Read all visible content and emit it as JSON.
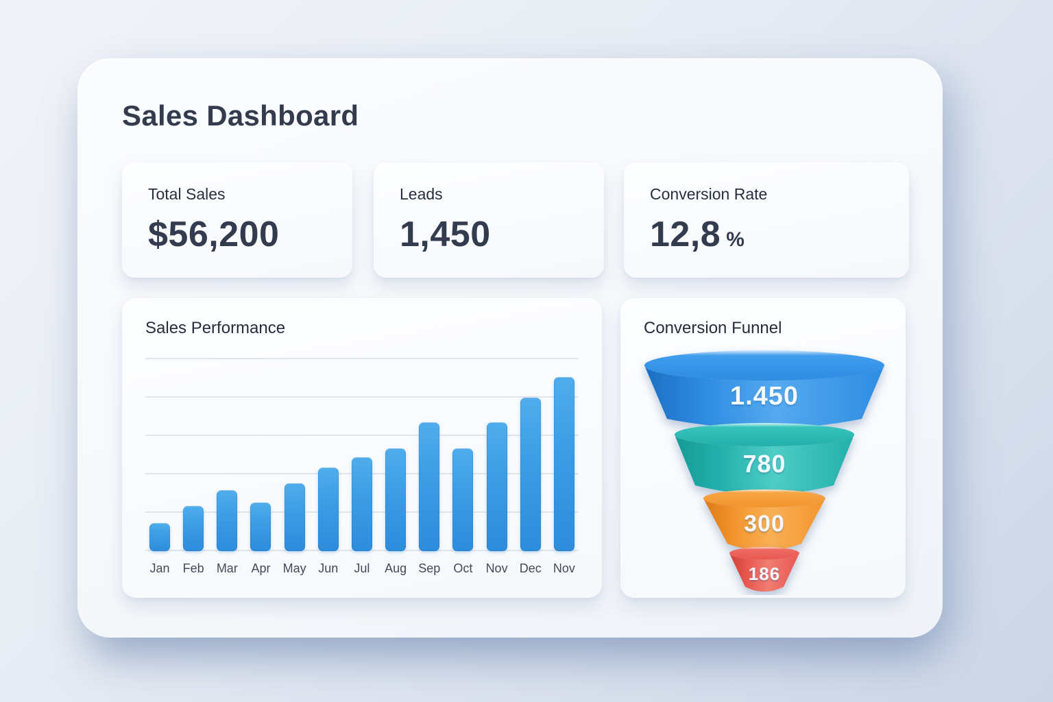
{
  "page": {
    "title": "Sales Dashboard"
  },
  "stats": [
    {
      "label": "Total Sales",
      "value": "$56,200",
      "unit": ""
    },
    {
      "label": "Leads",
      "value": "1,450",
      "unit": ""
    },
    {
      "label": "Conversion Rate",
      "value": "12,8",
      "unit": "%"
    }
  ],
  "chart_data": [
    {
      "type": "bar",
      "title": "Sales Performance",
      "categories": [
        "Jan",
        "Feb",
        "Mar",
        "Apr",
        "May",
        "Jun",
        "Jul",
        "Aug",
        "Sep",
        "Oct",
        "Nov",
        "Dec",
        "Nov"
      ],
      "values": [
        16,
        26,
        35,
        28,
        39,
        48,
        54,
        59,
        74,
        59,
        74,
        88,
        100
      ],
      "value_note": "relative bar heights in % of tallest bar; y-axis has no tick labels",
      "xlabel": "",
      "ylabel": "",
      "ylim": [
        0,
        100
      ],
      "grid": true,
      "gridline_count": 6,
      "legend": "none",
      "bar_gradient": [
        "#4FADEC",
        "#2E8CDC"
      ]
    },
    {
      "type": "funnel",
      "title": "Conversion Funnel",
      "stages": [
        {
          "label": "1.450",
          "value": 1450,
          "color": "#2E8CE2",
          "color_dark": "#1C6FC2",
          "color_light": "#55AAF0",
          "lid_rim": "#CFE8FC",
          "lid_main": "#3F9BEC"
        },
        {
          "label": "780",
          "value": 780,
          "color": "#23B0AB",
          "color_dark": "#169A95",
          "color_light": "#4ECDC6",
          "lid_rim": "#D6F6F4",
          "lid_main": "#35C2BB"
        },
        {
          "label": "300",
          "value": 300,
          "color": "#F3942D",
          "color_dark": "#DB7A16",
          "color_light": "#F9B055",
          "lid_rim": "#FDE8CD",
          "lid_main": "#F6A544"
        },
        {
          "label": "186",
          "value": 186,
          "color": "#E85750",
          "color_dark": "#CF413C",
          "color_light": "#F07D72",
          "lid_rim": "#FCDCD7",
          "lid_main": "#EE6C63"
        }
      ]
    }
  ]
}
